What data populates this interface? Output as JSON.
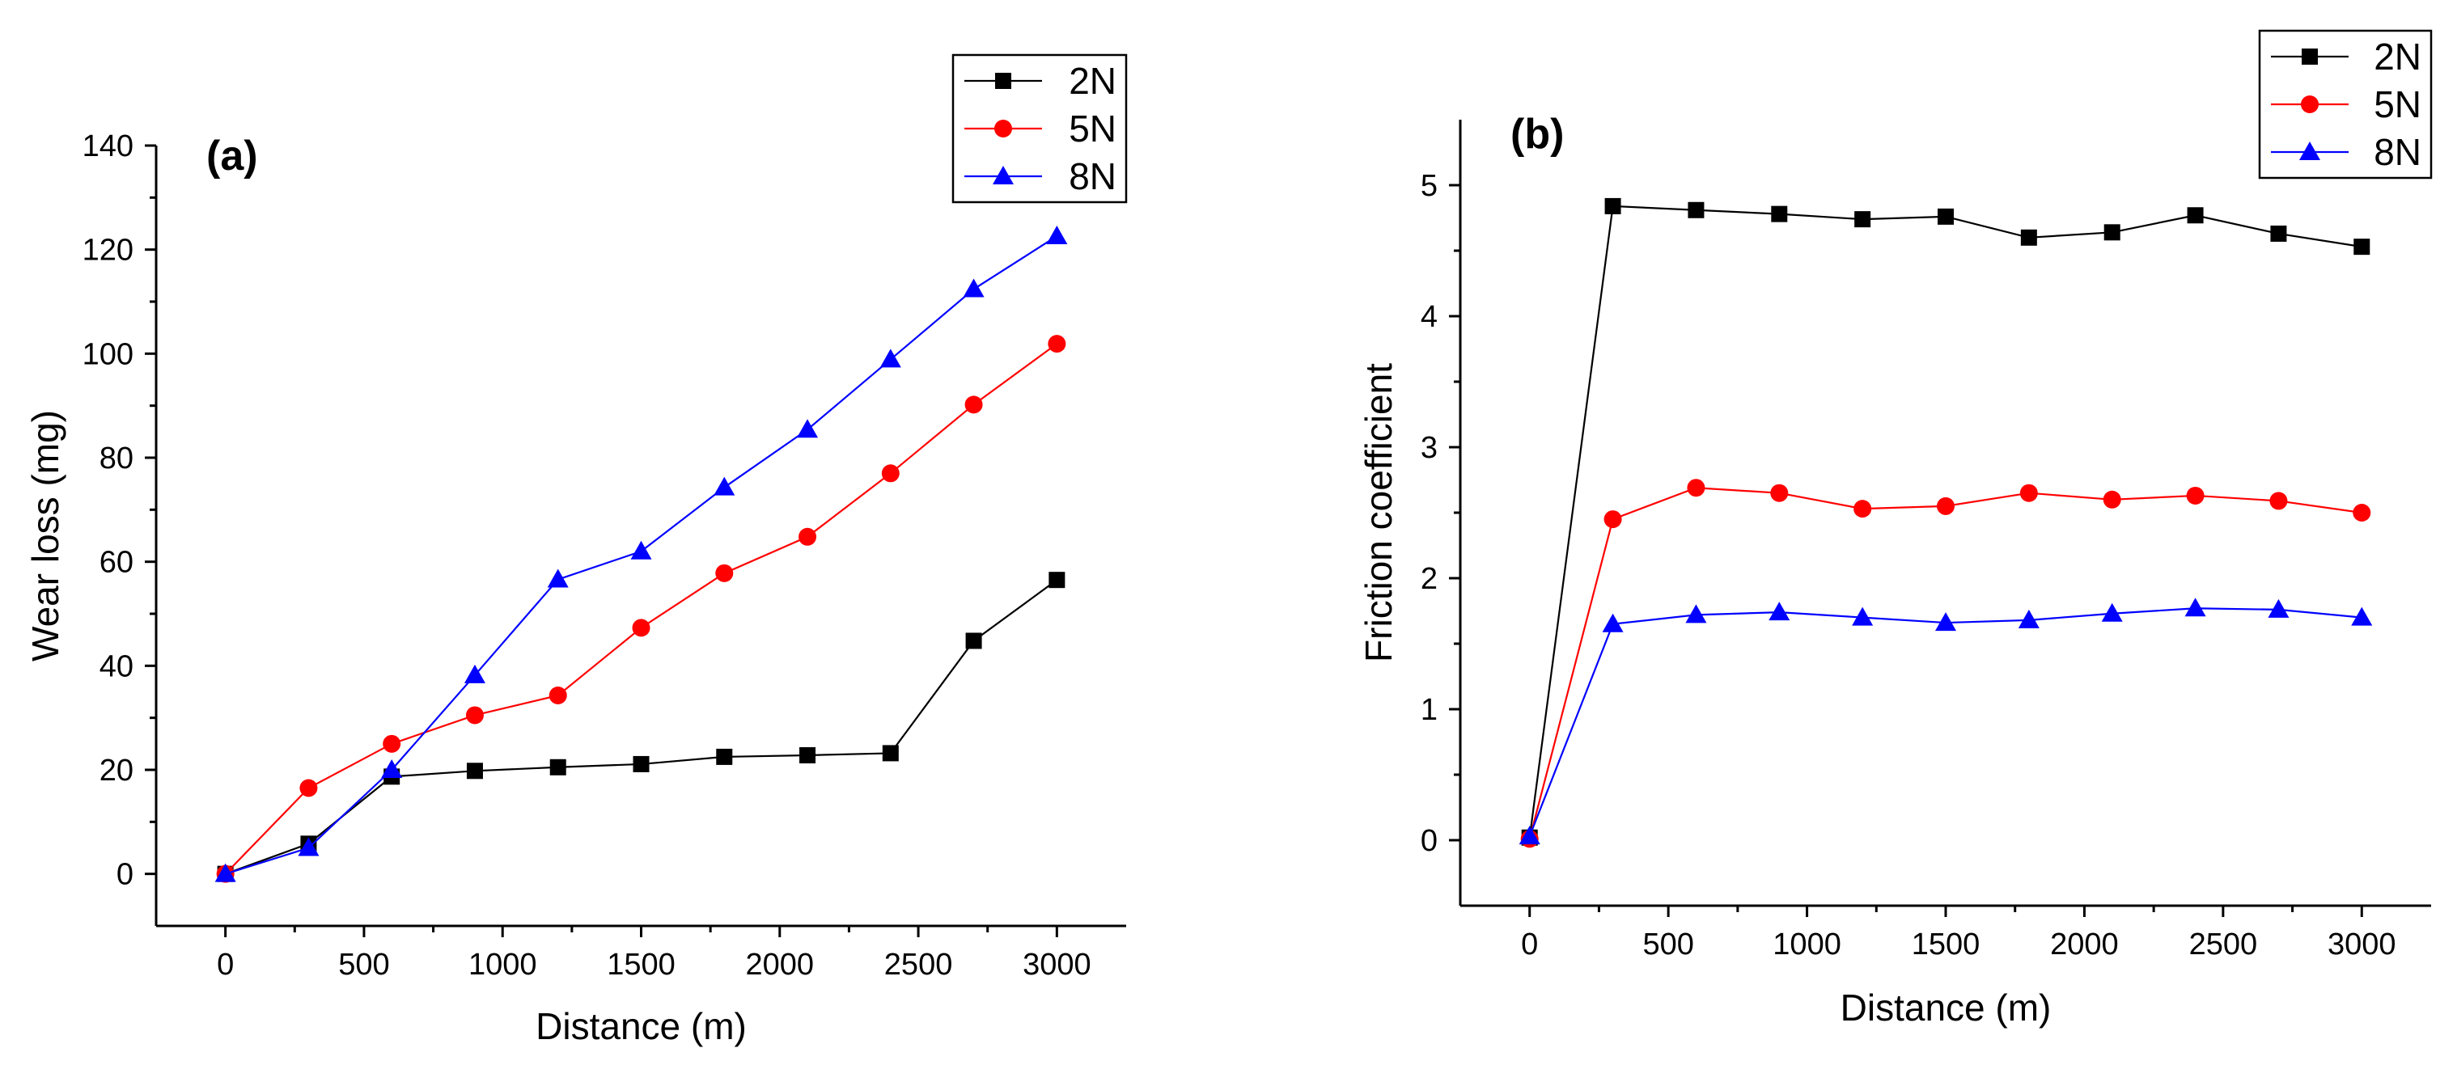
{
  "chart_data": [
    {
      "type": "line",
      "panel_label": "(a)",
      "xlabel": "Distance (m)",
      "ylabel": "Wear loss (mg)",
      "xlim": [
        -250,
        3250
      ],
      "ylim": [
        -10,
        140
      ],
      "xticks": [
        0,
        500,
        1000,
        1500,
        2000,
        2500,
        3000
      ],
      "xtick_labels": [
        "0",
        "500",
        "1000",
        "1500",
        "2000",
        "2500",
        "3000"
      ],
      "yticks": [
        0,
        20,
        40,
        60,
        80,
        100,
        120,
        140
      ],
      "ytick_labels": [
        "0",
        "20",
        "40",
        "60",
        "80",
        "100",
        "120",
        "140"
      ],
      "x": [
        0,
        300,
        600,
        900,
        1200,
        1500,
        1800,
        2100,
        2400,
        2700,
        3000
      ],
      "legend_position": "top-right",
      "series": [
        {
          "name": "2N",
          "color": "#000000",
          "marker": "square",
          "values": [
            0,
            5.8,
            18.7,
            19.8,
            20.5,
            21.1,
            22.5,
            22.8,
            23.2,
            44.8,
            56.5
          ]
        },
        {
          "name": "5N",
          "color": "#ff0000",
          "marker": "circle",
          "values": [
            0,
            16.5,
            25.0,
            30.5,
            34.3,
            47.3,
            57.8,
            64.8,
            77.0,
            90.2,
            101.9
          ]
        },
        {
          "name": "8N",
          "color": "#0000ff",
          "marker": "triangle",
          "values": [
            0,
            5.0,
            20.0,
            38.2,
            56.6,
            62.0,
            74.3,
            85.4,
            98.9,
            112.4,
            122.6
          ]
        }
      ]
    },
    {
      "type": "line",
      "panel_label": "(b)",
      "xlabel": "Distance (m)",
      "ylabel": "Friction coefficient",
      "xlim": [
        -250,
        3250
      ],
      "ylim": [
        -0.5,
        5.5
      ],
      "xticks": [
        0,
        500,
        1000,
        1500,
        2000,
        2500,
        3000
      ],
      "xtick_labels": [
        "0",
        "500",
        "1000",
        "1500",
        "2000",
        "2500",
        "3000"
      ],
      "yticks": [
        0,
        1,
        2,
        3,
        4,
        5
      ],
      "ytick_labels": [
        "0",
        "1",
        "2",
        "3",
        "4",
        "5"
      ],
      "x": [
        0,
        300,
        600,
        900,
        1200,
        1500,
        1800,
        2100,
        2400,
        2700,
        3000
      ],
      "legend_position": "top-right",
      "series": [
        {
          "name": "2N",
          "color": "#000000",
          "marker": "square",
          "values": [
            0.02,
            4.84,
            4.81,
            4.78,
            4.74,
            4.76,
            4.6,
            4.64,
            4.77,
            4.63,
            4.53
          ]
        },
        {
          "name": "5N",
          "color": "#ff0000",
          "marker": "circle",
          "values": [
            0.01,
            2.45,
            2.69,
            2.65,
            2.53,
            2.55,
            2.65,
            2.6,
            2.63,
            2.59,
            2.5
          ]
        },
        {
          "name": "8N",
          "color": "#0000ff",
          "marker": "triangle",
          "values": [
            0.03,
            1.65,
            1.72,
            1.74,
            1.7,
            1.66,
            1.68,
            1.73,
            1.77,
            1.76,
            1.7
          ]
        }
      ]
    }
  ]
}
